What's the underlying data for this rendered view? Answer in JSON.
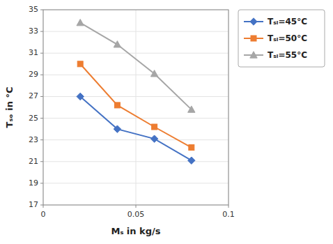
{
  "chart_data": {
    "type": "line",
    "xlabel": "Mₛ in kg/s",
    "ylabel": "Tₛₒ in °C",
    "x": [
      0.02,
      0.04,
      0.06,
      0.08
    ],
    "series": [
      {
        "name": "Tₛᵢ=45°C",
        "color": "#4472C4",
        "marker": "diamond",
        "line_style": "solid",
        "values": [
          27.0,
          24.0,
          23.1,
          21.1
        ]
      },
      {
        "name": "Tₛᵢ=50°C",
        "color": "#ED7D31",
        "marker": "square",
        "line_style": "solid",
        "values": [
          30.0,
          26.2,
          24.2,
          22.3
        ]
      },
      {
        "name": "Tₛᵢ=55°C",
        "color": "#A6A6A6",
        "marker": "triangle",
        "line_style": "solid",
        "values": [
          33.8,
          31.8,
          29.1,
          25.8
        ]
      }
    ],
    "xlim": [
      0,
      0.1
    ],
    "ylim": [
      17,
      35
    ],
    "xticks": [
      0,
      0.05,
      0.1
    ],
    "yticks": [
      17,
      19,
      21,
      23,
      25,
      27,
      29,
      31,
      33,
      35
    ],
    "grid": true,
    "legend": "right"
  }
}
